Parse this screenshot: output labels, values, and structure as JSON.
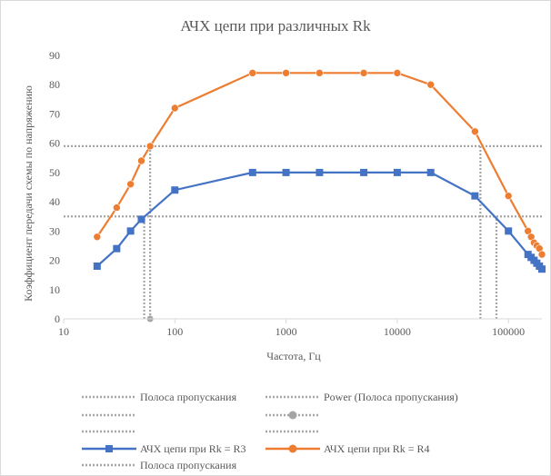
{
  "chart_data": {
    "type": "line",
    "title": "АЧХ цепи при различных Rk",
    "xlabel": "Частота, Гц",
    "ylabel": "Коэффициент передачи схемы по напряжению",
    "x_scale": "log",
    "xlim": [
      10,
      200000
    ],
    "ylim": [
      0,
      90
    ],
    "x_ticks": [
      10,
      100,
      1000,
      10000,
      100000
    ],
    "x_tick_labels": [
      "10",
      "100",
      "1000",
      "10000",
      "100000"
    ],
    "y_ticks": [
      0,
      10,
      20,
      30,
      40,
      50,
      60,
      70,
      80,
      90
    ],
    "grid": false,
    "legend_position": "bottom",
    "series": [
      {
        "name": "АЧХ цепи при Rk = R3",
        "color": "#4472C4",
        "marker": "square",
        "x": [
          20,
          30,
          40,
          50,
          100,
          500,
          1000,
          2000,
          5000,
          10000,
          20000,
          50000,
          100000,
          150000,
          160000,
          170000,
          180000,
          190000,
          200000
        ],
        "y": [
          18,
          24,
          30,
          34,
          44,
          50,
          50,
          50,
          50,
          50,
          50,
          42,
          30,
          22,
          21,
          20,
          19,
          18,
          17
        ]
      },
      {
        "name": "АЧХ цепи при Rk = R4",
        "color": "#ED7D31",
        "marker": "circle",
        "x": [
          20,
          30,
          40,
          50,
          60,
          100,
          500,
          1000,
          2000,
          5000,
          10000,
          20000,
          50000,
          100000,
          150000,
          160000,
          170000,
          180000,
          190000,
          200000
        ],
        "y": [
          28,
          38,
          46,
          54,
          59,
          72,
          84,
          84,
          84,
          84,
          84,
          80,
          64,
          42,
          30,
          28,
          26,
          25,
          24,
          22
        ]
      }
    ],
    "guide_lines": [
      {
        "name": "Полоса пропускания",
        "style": "dotted",
        "color": "#A5A5A5",
        "orientation": "horizontal",
        "y": 59,
        "x_range": [
          10,
          200000
        ]
      },
      {
        "name": "Полоса пропускания",
        "style": "dotted",
        "color": "#A5A5A5",
        "orientation": "horizontal",
        "y": 35,
        "x_range": [
          10,
          200000
        ]
      },
      {
        "name": "",
        "style": "dotted",
        "color": "#A5A5A5",
        "orientation": "vertical",
        "x": 60,
        "y_range": [
          0,
          59
        ]
      },
      {
        "name": "",
        "style": "dotted",
        "color": "#A5A5A5",
        "orientation": "vertical",
        "x": 53,
        "y_range": [
          0,
          35
        ]
      },
      {
        "name": "",
        "style": "dotted",
        "color": "#A5A5A5",
        "orientation": "vertical",
        "x": 56000,
        "y_range": [
          0,
          59
        ]
      },
      {
        "name": "",
        "style": "dotted",
        "color": "#A5A5A5",
        "orientation": "vertical",
        "x": 78000,
        "y_range": [
          0,
          35
        ]
      }
    ],
    "extra_points": [
      {
        "name": "Power (Полоса пропускания)",
        "x": 60,
        "y": 0,
        "color": "#A5A5A5"
      }
    ],
    "legend": [
      {
        "label": "Полоса пропускания",
        "style": "dotted",
        "color": "#A5A5A5"
      },
      {
        "label": "Power (Полоса пропускания)",
        "style": "dotted",
        "color": "#A5A5A5"
      },
      {
        "label": "",
        "style": "dotted",
        "color": "#A5A5A5"
      },
      {
        "label": "",
        "style": "dotted-marker",
        "color": "#A5A5A5"
      },
      {
        "label": "",
        "style": "dotted",
        "color": "#A5A5A5"
      },
      {
        "label": "",
        "style": "dotted",
        "color": "#A5A5A5"
      },
      {
        "label": "АЧХ цепи при Rk = R3",
        "style": "line-square",
        "color": "#4472C4"
      },
      {
        "label": "АЧХ цепи при Rk = R4",
        "style": "line-circle",
        "color": "#ED7D31"
      },
      {
        "label": "Полоса пропускания",
        "style": "dotted",
        "color": "#A5A5A5"
      }
    ]
  }
}
